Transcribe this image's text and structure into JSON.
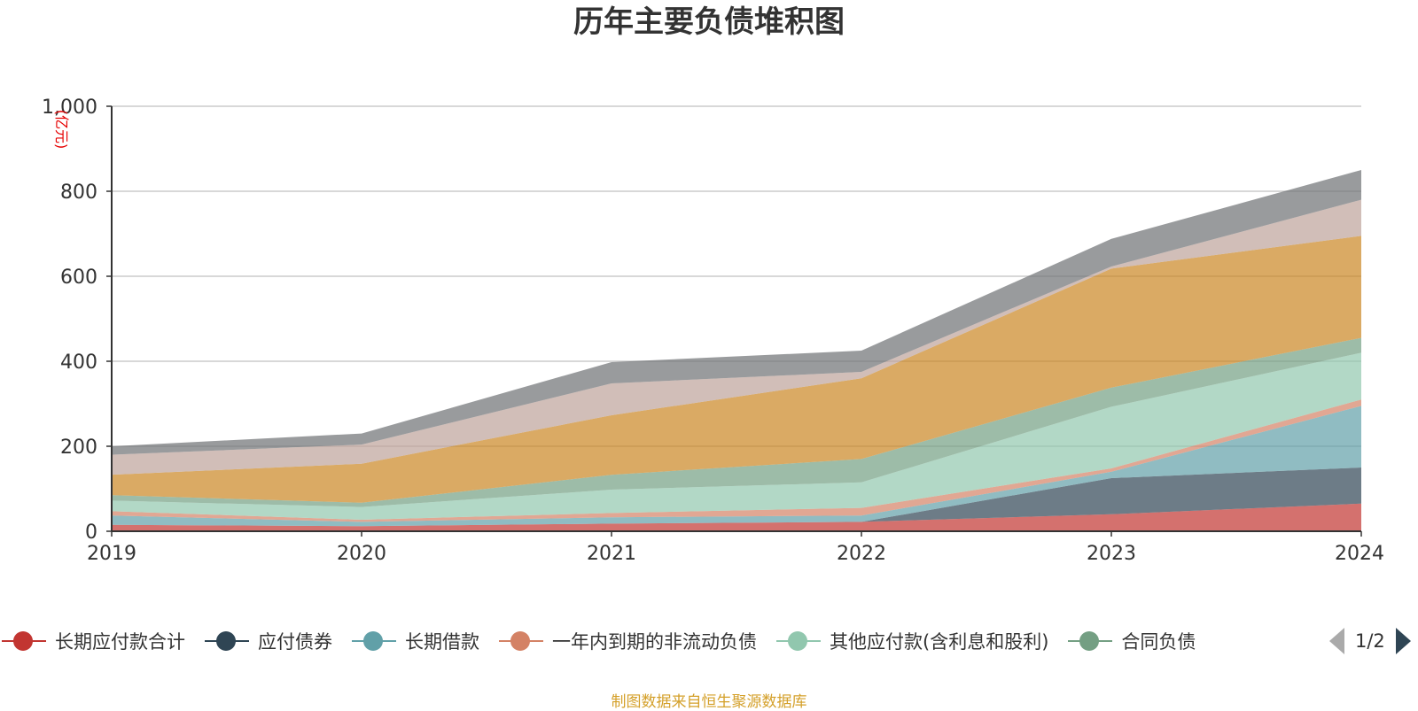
{
  "title": "历年主要负债堆积图",
  "unit_label": "(亿元)",
  "source_note": "制图数据来自恒生聚源数据库",
  "pager": {
    "text": "1/2",
    "prev_icon": "triangle-left-icon",
    "next_icon": "triangle-right-icon"
  },
  "colors": {
    "axis": "#333333",
    "grid": "#cccccc",
    "unit": "#e60000",
    "source": "#d4a02a"
  },
  "chart_data": {
    "type": "area",
    "stacked": true,
    "title": "历年主要负债堆积图",
    "ylabel": "(亿元)",
    "xlabel": "",
    "x": [
      "2019",
      "2020",
      "2021",
      "2022",
      "2023",
      "2024"
    ],
    "ylim": [
      0,
      1000
    ],
    "yticks": [
      "0",
      "200",
      "400",
      "600",
      "800",
      "1,000"
    ],
    "grid": true,
    "legend_position": "bottom",
    "series": [
      {
        "name": "长期应付款合计",
        "color": "#c23531",
        "legend": true,
        "values": [
          15,
          12,
          18,
          22,
          40,
          65
        ]
      },
      {
        "name": "应付债券",
        "color": "#2f4554",
        "legend": true,
        "values": [
          0,
          0,
          0,
          0,
          85,
          85
        ]
      },
      {
        "name": "长期借款",
        "color": "#61a0a8",
        "legend": true,
        "values": [
          22,
          10,
          15,
          15,
          15,
          145
        ]
      },
      {
        "name": "一年内到期的非流动负债",
        "color": "#d48265",
        "legend": true,
        "values": [
          10,
          5,
          10,
          18,
          8,
          15
        ]
      },
      {
        "name": "其他应付款(含利息和股利)",
        "color": "#91c7ae",
        "legend": true,
        "values": [
          25,
          30,
          55,
          60,
          145,
          110
        ]
      },
      {
        "name": "合同负债",
        "color": "#749f83",
        "legend": true,
        "values": [
          13,
          10,
          35,
          55,
          45,
          35
        ]
      },
      {
        "color": "#ca8622",
        "legend": false,
        "values": [
          48,
          92,
          140,
          190,
          280,
          240
        ]
      },
      {
        "color": "#bda29a",
        "legend": false,
        "values": [
          47,
          45,
          75,
          15,
          5,
          85
        ]
      },
      {
        "color": "#6e7074",
        "legend": false,
        "values": [
          20,
          26,
          50,
          50,
          65,
          70
        ]
      }
    ]
  }
}
